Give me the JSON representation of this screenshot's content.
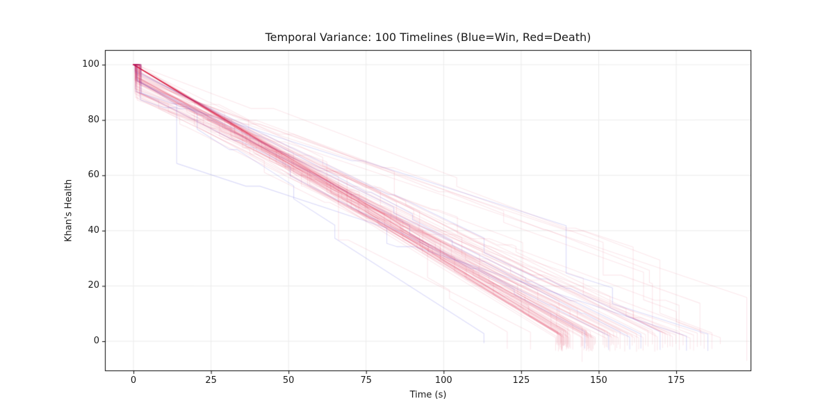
{
  "window": {
    "background": "#ffffff"
  },
  "chart_data": {
    "type": "line",
    "title": "Temporal Variance: 100 Timelines (Blue=Win, Red=Death)",
    "xlabel": "Time (s)",
    "ylabel": "Khan's Health",
    "xticks": [
      0,
      25,
      50,
      75,
      100,
      125,
      150,
      175
    ],
    "yticks": [
      0,
      20,
      40,
      60,
      80,
      100
    ],
    "xlim": [
      -9.2,
      199.2
    ],
    "ylim": [
      -10.8,
      105.3
    ],
    "grid": true,
    "legend": "none",
    "n_timelines": 100,
    "n_win": 8,
    "n_death": 92,
    "start_health": 100,
    "end_health": 0,
    "colors": {
      "background": "#ffffff",
      "grid": "#ebebeb",
      "axis": "#000000",
      "text": "#1a1a1a",
      "death": "#dc143c",
      "win": "#2b2bdd"
    },
    "line_alpha": {
      "death": 0.1,
      "win": 0.17
    },
    "win_indices": [
      0,
      40,
      58,
      69,
      74,
      81,
      90,
      96
    ],
    "end_times": [
      113.0,
      120.5,
      128.0,
      136.1,
      136.4,
      136.6,
      136.8,
      137.0,
      137.2,
      137.35,
      137.5,
      137.6,
      137.7,
      137.8,
      137.9,
      138.0,
      138.1,
      138.2,
      138.3,
      138.4,
      138.5,
      138.6,
      138.7,
      138.8,
      138.9,
      139.0,
      139.15,
      139.3,
      139.45,
      139.6,
      139.75,
      139.9,
      140.1,
      140.3,
      140.6,
      140.9,
      144.3,
      144.6,
      144.9,
      145.2,
      145.5,
      145.8,
      146.0,
      146.2,
      146.4,
      146.6,
      146.8,
      147.0,
      147.3,
      147.6,
      147.9,
      148.2,
      148.6,
      148.9,
      151.4,
      151.9,
      152.4,
      152.8,
      153.2,
      153.6,
      154.0,
      154.4,
      154.8,
      155.3,
      155.8,
      156.3,
      156.9,
      158.4,
      159.2,
      160.0,
      160.8,
      161.5,
      162.2,
      162.9,
      163.6,
      164.3,
      165.1,
      165.9,
      167.3,
      168.1,
      168.9,
      169.8,
      170.6,
      171.4,
      172.2,
      173.0,
      173.8,
      174.9,
      176.0,
      177.2,
      178.3,
      179.5,
      180.6,
      181.8,
      182.9,
      184.0,
      185.2,
      186.5,
      187.8,
      189.2
    ]
  }
}
